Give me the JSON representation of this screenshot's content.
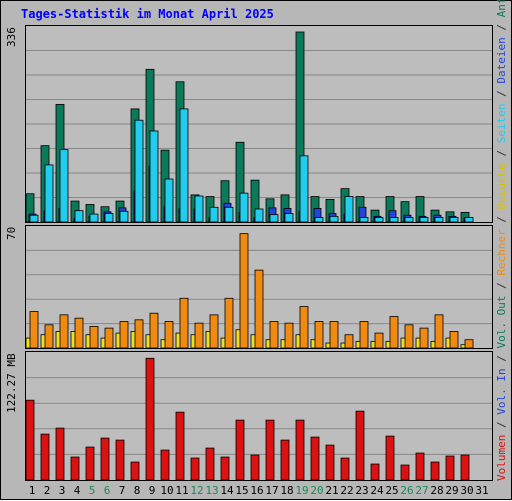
{
  "title": "Tages-Statistik im Monat April 2025",
  "colors": {
    "anfragen": "#0b7a5a",
    "dateien": "#2244dd",
    "seiten": "#22ccee",
    "besuche": "#f2e020",
    "rechner": "#f08a10",
    "volumen": "#dd1111",
    "weekend_day": "#1a8a55",
    "weekday": "#000000",
    "grid": "#888888"
  },
  "legend": {
    "top": [
      {
        "key": "anfragen",
        "label": "Anfragen",
        "color": "#0b7a5a"
      },
      {
        "key": "dateien",
        "label": "Dateien",
        "color": "#2244dd"
      },
      {
        "key": "seiten",
        "label": "Seiten",
        "color": "#22ccee"
      }
    ],
    "middle": [
      {
        "key": "besuche",
        "label": "Besuche",
        "color": "#d8c000"
      },
      {
        "key": "rechner",
        "label": "Rechner",
        "color": "#f08a10"
      }
    ],
    "bottom": [
      {
        "key": "vol_out",
        "label": "Vol. Out",
        "color": "#0b7a5a"
      },
      {
        "key": "vol_in",
        "label": "Vol. In",
        "color": "#2244dd"
      },
      {
        "key": "volumen",
        "label": "Volumen",
        "color": "#dd1111"
      }
    ],
    "separator": " / "
  },
  "chart_data": [
    {
      "type": "bar",
      "name": "requests",
      "ylabel": "336",
      "ylim": [
        0,
        336
      ],
      "grid": true,
      "categories": [
        1,
        2,
        3,
        4,
        5,
        6,
        7,
        8,
        9,
        10,
        11,
        12,
        13,
        14,
        15,
        16,
        17,
        18,
        19,
        20,
        21,
        22,
        23,
        24,
        25,
        26,
        27,
        28,
        29,
        30,
        31
      ],
      "series": [
        {
          "name": "Anfragen",
          "key": "anfragen",
          "values": [
            50,
            135,
            208,
            37,
            31,
            27,
            37,
            200,
            270,
            127,
            248,
            48,
            45,
            73,
            141,
            74,
            41,
            48,
            336,
            45,
            40,
            59,
            45,
            21,
            45,
            36,
            45,
            21,
            18,
            17,
            0
          ]
        },
        {
          "name": "Dateien",
          "key": "dateien",
          "values": [
            14,
            20,
            24,
            6,
            10,
            18,
            25,
            55,
            98,
            27,
            23,
            23,
            8,
            33,
            17,
            8,
            25,
            24,
            18,
            24,
            15,
            14,
            26,
            10,
            20,
            12,
            10,
            12,
            10,
            8,
            0
          ]
        },
        {
          "name": "Seiten",
          "key": "seiten",
          "values": [
            12,
            101,
            128,
            20,
            14,
            15,
            19,
            180,
            161,
            76,
            200,
            46,
            26,
            26,
            51,
            23,
            13,
            15,
            117,
            8,
            10,
            45,
            8,
            8,
            8,
            8,
            8,
            8,
            8,
            8,
            0
          ]
        }
      ]
    },
    {
      "type": "bar",
      "name": "visits",
      "ylabel": "70",
      "ylim": [
        0,
        70
      ],
      "grid": true,
      "categories": [
        1,
        2,
        3,
        4,
        5,
        6,
        7,
        8,
        9,
        10,
        11,
        12,
        13,
        14,
        15,
        16,
        17,
        18,
        19,
        20,
        21,
        22,
        23,
        24,
        25,
        26,
        27,
        28,
        29,
        30,
        31
      ],
      "series": [
        {
          "name": "Besuche",
          "key": "besuche",
          "values": [
            6,
            8,
            10,
            10,
            8,
            6,
            9,
            10,
            8,
            5,
            9,
            8,
            10,
            6,
            11,
            8,
            5,
            5,
            8,
            5,
            3,
            3,
            4,
            4,
            4,
            6,
            6,
            4,
            6,
            2,
            0
          ]
        },
        {
          "name": "Rechner",
          "key": "rechner",
          "values": [
            22,
            14,
            20,
            18,
            13,
            12,
            16,
            17,
            21,
            16,
            30,
            15,
            20,
            30,
            69,
            47,
            16,
            15,
            25,
            16,
            16,
            8,
            16,
            9,
            19,
            14,
            12,
            20,
            10,
            5,
            0
          ]
        }
      ]
    },
    {
      "type": "bar",
      "name": "volume",
      "ylabel": "122.27 MB",
      "ylim": [
        0,
        122.27
      ],
      "grid": true,
      "categories": [
        1,
        2,
        3,
        4,
        5,
        6,
        7,
        8,
        9,
        10,
        11,
        12,
        13,
        14,
        15,
        16,
        17,
        18,
        19,
        20,
        21,
        22,
        23,
        24,
        25,
        26,
        27,
        28,
        29,
        30,
        31
      ],
      "series": [
        {
          "name": "Volumen",
          "key": "volumen",
          "values": [
            80,
            46,
            52,
            23,
            33,
            42,
            40,
            18,
            122,
            30,
            68,
            22,
            32,
            23,
            60,
            25,
            60,
            40,
            60,
            43,
            35,
            22,
            69,
            16,
            44,
            15,
            27,
            18,
            24,
            25,
            0
          ]
        }
      ]
    }
  ],
  "weekend_days": [
    5,
    6,
    12,
    13,
    19,
    20,
    26,
    27
  ]
}
